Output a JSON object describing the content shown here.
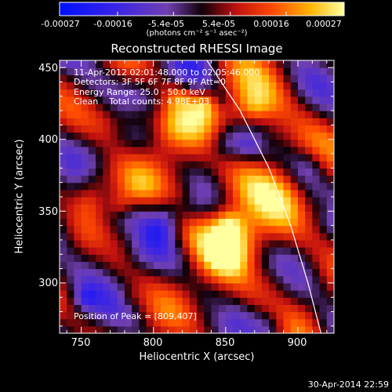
{
  "chart_data": {
    "type": "heatmap",
    "title": "Reconstructed RHESSI Image",
    "xlabel": "Heliocentric X (arcsec)",
    "ylabel": "Heliocentric Y (arcsec)",
    "xlim": [
      735,
      925
    ],
    "ylim": [
      265,
      455
    ],
    "xticks": [
      750,
      800,
      850,
      900
    ],
    "yticks": [
      300,
      350,
      400,
      450
    ],
    "colorbar": {
      "ticks": [
        "-0.00027",
        "-0.00016",
        "-5.4e-05",
        "5.4e-05",
        "0.00016",
        "0.00027"
      ],
      "values": [
        -0.00027,
        -0.00016,
        -5.4e-05,
        5.4e-05,
        0.00016,
        0.00027
      ],
      "range": [
        -0.00027,
        0.00027
      ],
      "unit": "(photons cm⁻² s⁻¹ asec⁻²)"
    },
    "annotations": [
      "11-Apr-2012 02:01:48.000 to 02:05:46.000",
      "Detectors: 3F 5F 6F 7F 8F 9F Att=0",
      "Energy Range: 25.0 - 50.0 keV",
      "Clean    Total counts: 4.98E+03",
      "Position of Peak = [809,407]"
    ],
    "peak": {
      "x": 809,
      "y": 407
    },
    "limb_curve": [
      [
        837,
        455
      ],
      [
        860,
        420
      ],
      [
        880,
        380
      ],
      [
        895,
        340
      ],
      [
        907,
        300
      ],
      [
        916,
        265
      ]
    ],
    "colors": {
      "negative_low": "#0000ff",
      "negative_mid": "#7a3fc0",
      "zero": "#000000",
      "positive_mid": "#ff2a00",
      "positive_high": "#ffff9a",
      "limb": "#ffffff"
    }
  },
  "footer": {
    "timestamp": "30-Apr-2014 22:59"
  }
}
